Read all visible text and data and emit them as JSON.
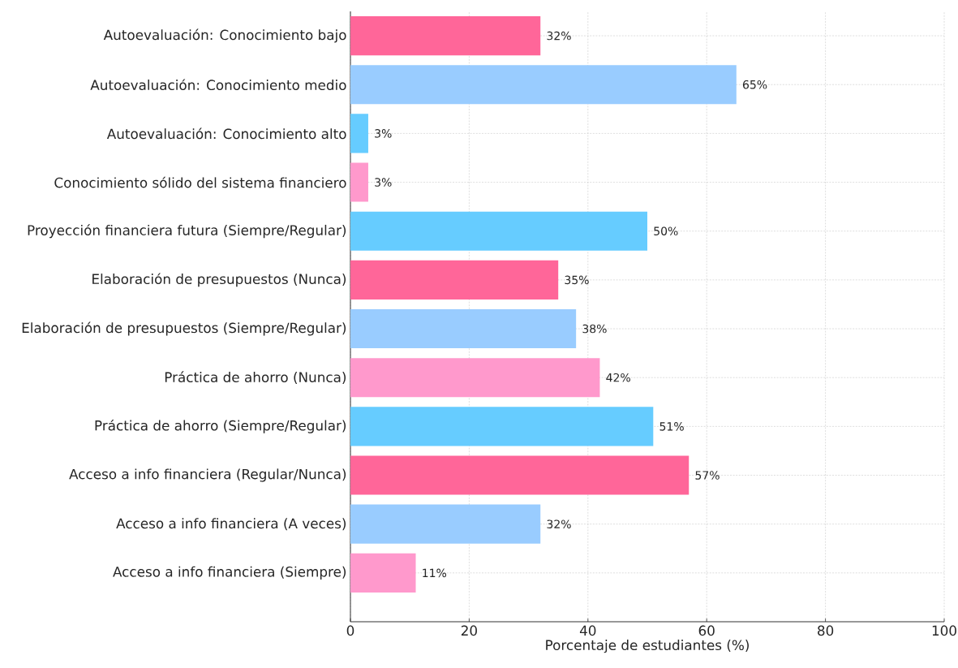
{
  "chart_data": {
    "type": "bar",
    "orientation": "horizontal",
    "xlabel": "Porcentaje de estudiantes (%)",
    "categories": [
      "Autoevaluación: Conocimiento bajo",
      "Autoevaluación: Conocimiento medio",
      "Autoevaluación: Conocimiento alto",
      "Conocimiento sólido del sistema financiero",
      "Proyección financiera futura (Siempre/Regular)",
      "Elaboración de presupuestos (Nunca)",
      "Elaboración de presupuestos (Siempre/Regular)",
      "Práctica de ahorro (Nunca)",
      "Práctica de ahorro (Siempre/Regular)",
      "Acceso a info financiera (Regular/Nunca)",
      "Acceso a info financiera (A veces)",
      "Acceso a info financiera (Siempre)"
    ],
    "values": [
      32,
      65,
      3,
      3,
      50,
      35,
      38,
      42,
      51,
      57,
      32,
      11
    ],
    "colors": [
      "#ff6699",
      "#99ccff",
      "#66ccff",
      "#ff99cc",
      "#66ccff",
      "#ff6699",
      "#99ccff",
      "#ff99cc",
      "#66ccff",
      "#ff6699",
      "#99ccff",
      "#ff99cc"
    ],
    "value_labels": [
      "32%",
      "65%",
      "3%",
      "3%",
      "50%",
      "35%",
      "38%",
      "42%",
      "51%",
      "57%",
      "32%",
      "11%"
    ],
    "xlim": [
      0,
      100
    ],
    "xticks": [
      0,
      20,
      40,
      60,
      80,
      100
    ],
    "grid": true
  }
}
